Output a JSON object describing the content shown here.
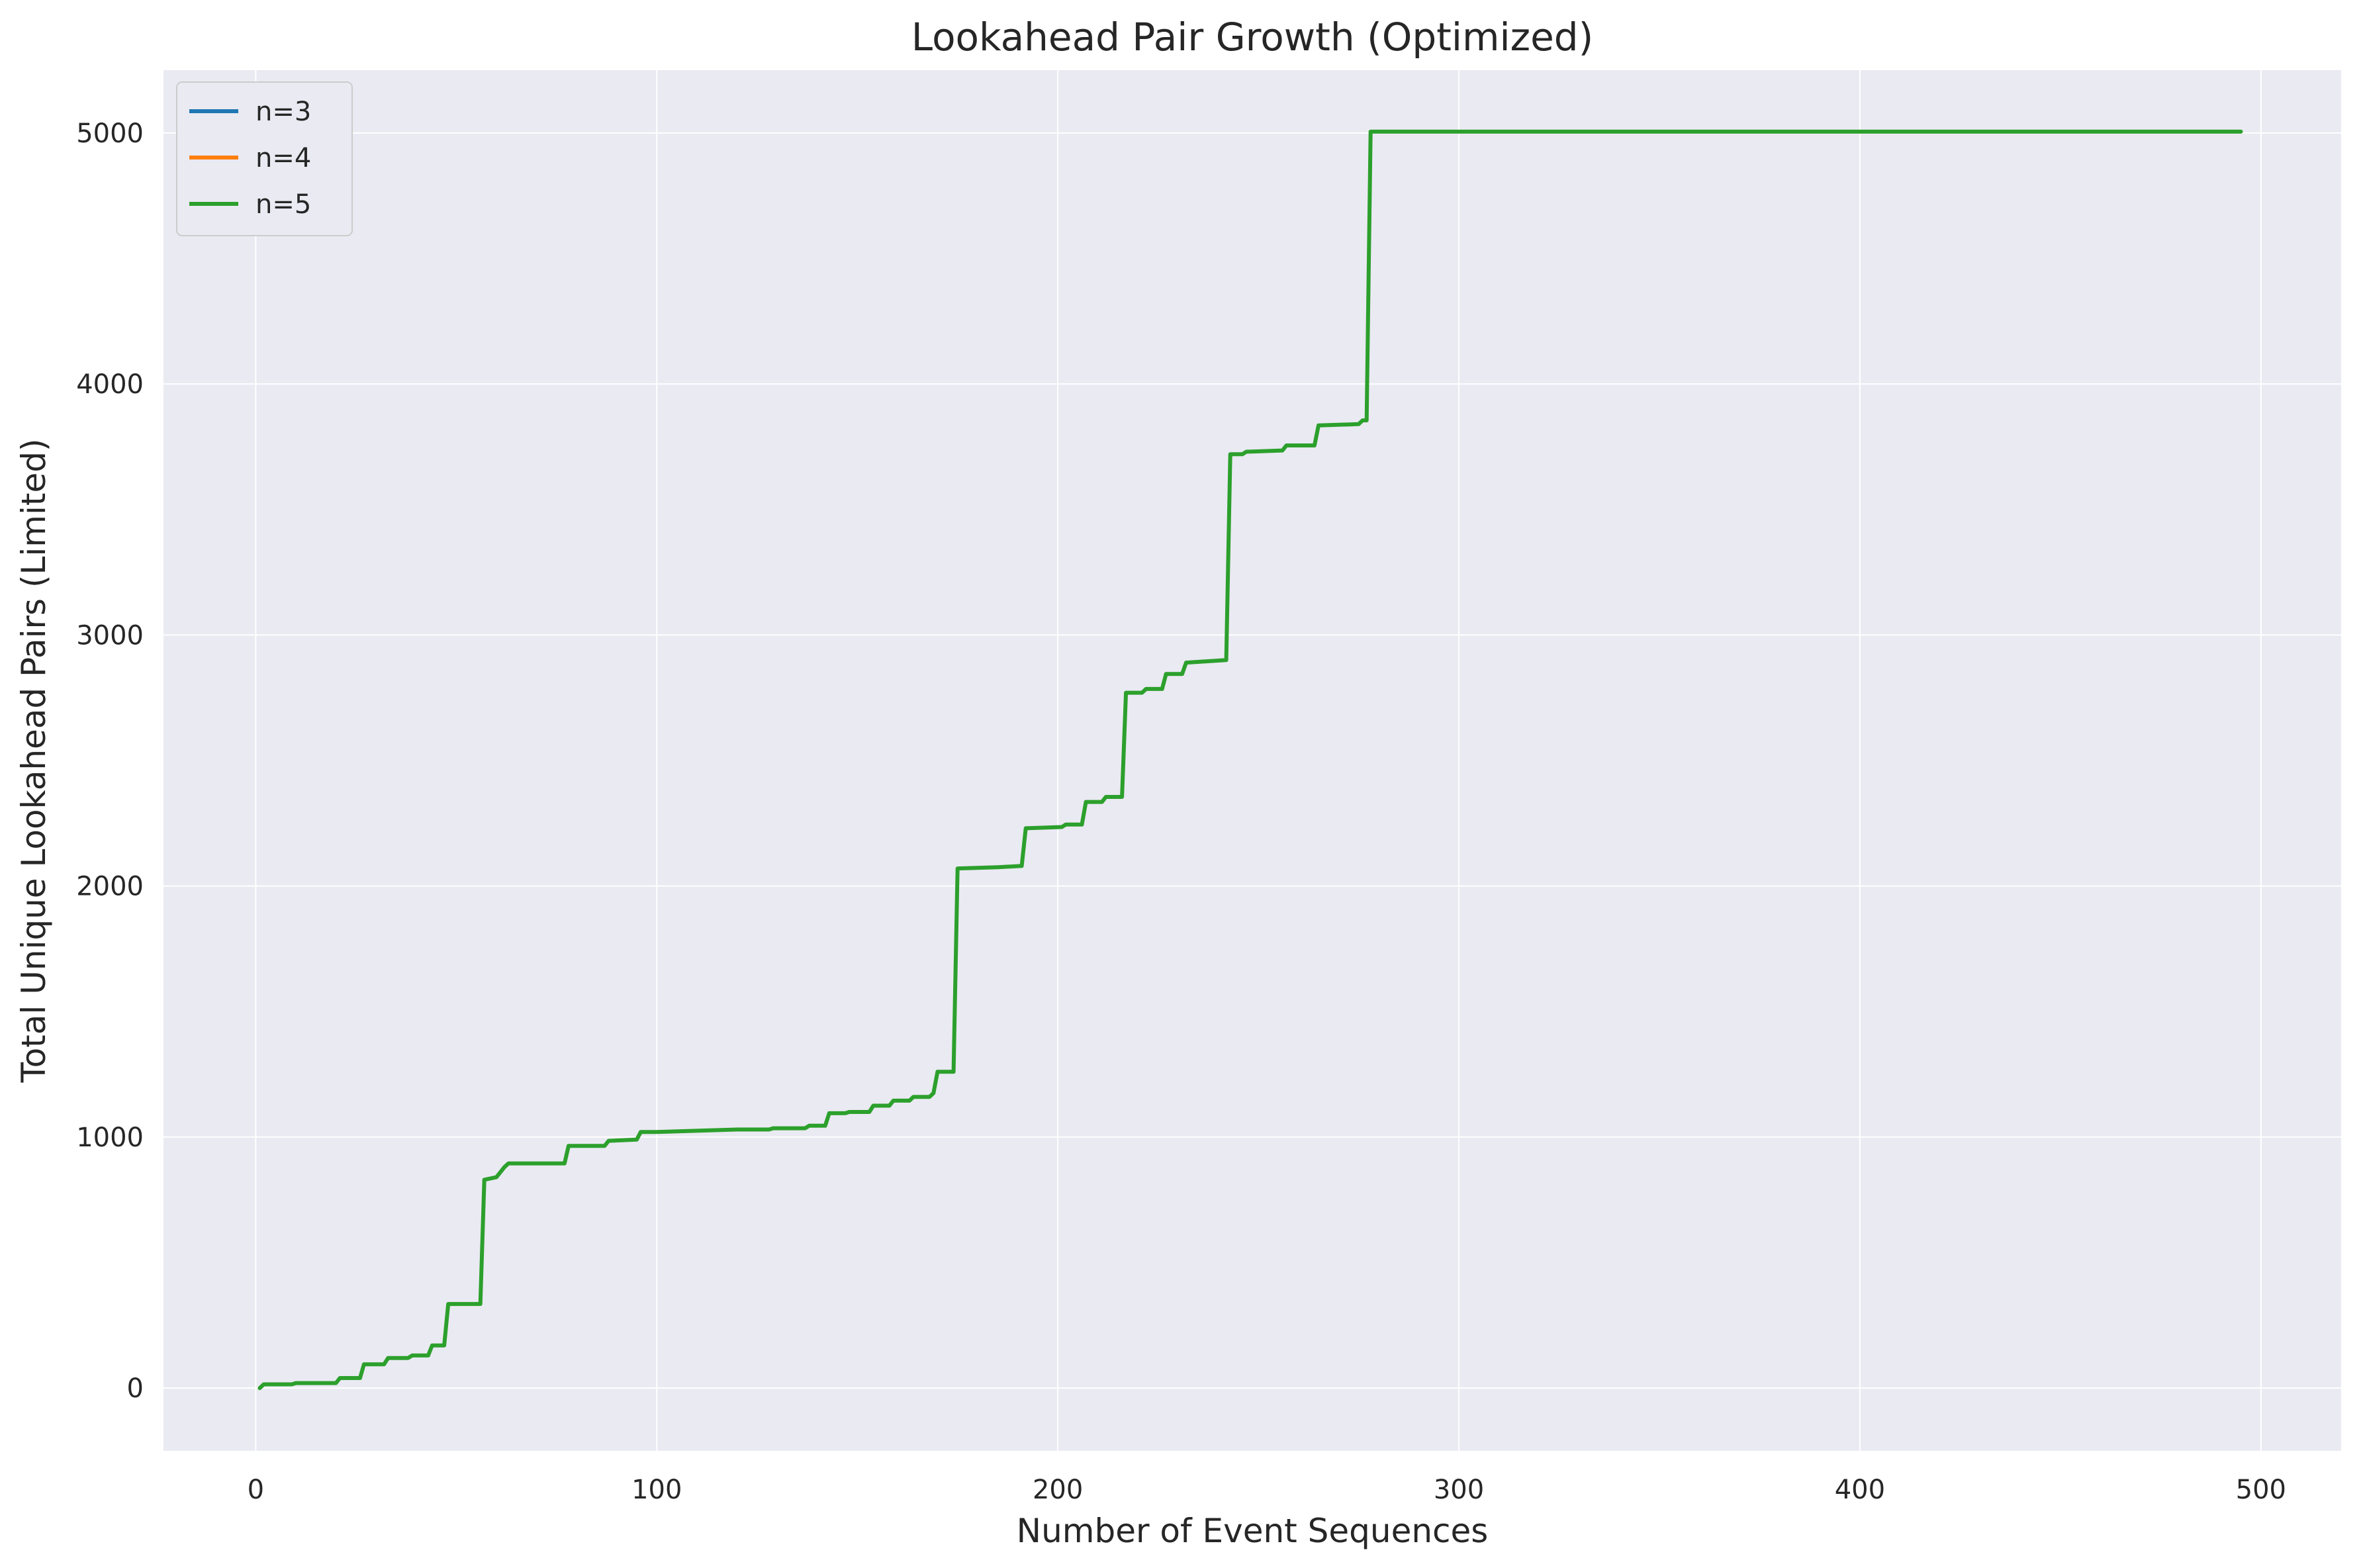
{
  "chart_data": {
    "type": "line",
    "title": "Lookahead Pair Growth (Optimized)",
    "xlabel": "Number of Event Sequences",
    "ylabel": "Total Unique Lookahead Pairs (Limited)",
    "xlim": [
      -23,
      520
    ],
    "ylim": [
      -250,
      5250
    ],
    "xticks": [
      0,
      100,
      200,
      300,
      400,
      500
    ],
    "yticks": [
      0,
      1000,
      2000,
      3000,
      4000,
      5000
    ],
    "grid": true,
    "legend_position": "top-left",
    "series": [
      {
        "name": "n=3",
        "color": "#1f77b4",
        "x": [],
        "y": []
      },
      {
        "name": "n=4",
        "color": "#ff7f0e",
        "x": [],
        "y": []
      },
      {
        "name": "n=5",
        "color": "#2ca02c",
        "x": [
          1,
          2,
          9,
          10,
          20,
          21,
          26,
          27,
          32,
          33,
          38,
          39,
          43,
          44,
          47,
          48,
          56,
          57,
          60,
          62,
          63,
          77,
          78,
          87,
          88,
          95,
          96,
          100,
          120,
          128,
          129,
          137,
          138,
          142,
          143,
          147,
          148,
          153,
          154,
          158,
          159,
          163,
          164,
          168,
          169,
          170,
          171,
          174,
          175,
          185,
          191,
          192,
          201,
          202,
          206,
          207,
          211,
          212,
          216,
          217,
          221,
          222,
          226,
          227,
          231,
          232,
          242,
          243,
          246,
          247,
          256,
          257,
          264,
          265,
          275,
          276,
          277,
          278,
          495
        ],
        "y": [
          0,
          15,
          15,
          20,
          20,
          40,
          40,
          95,
          95,
          120,
          120,
          130,
          130,
          170,
          170,
          335,
          335,
          830,
          840,
          880,
          895,
          895,
          965,
          965,
          985,
          990,
          1020,
          1020,
          1030,
          1030,
          1035,
          1035,
          1045,
          1045,
          1095,
          1095,
          1100,
          1100,
          1125,
          1125,
          1145,
          1145,
          1160,
          1160,
          1175,
          1260,
          1260,
          1260,
          2070,
          2075,
          2080,
          2230,
          2235,
          2245,
          2245,
          2335,
          2335,
          2355,
          2355,
          2770,
          2770,
          2785,
          2785,
          2845,
          2845,
          2890,
          2900,
          3720,
          3720,
          3730,
          3735,
          3755,
          3755,
          3835,
          3840,
          3855,
          3855,
          5005,
          5005
        ]
      }
    ]
  }
}
